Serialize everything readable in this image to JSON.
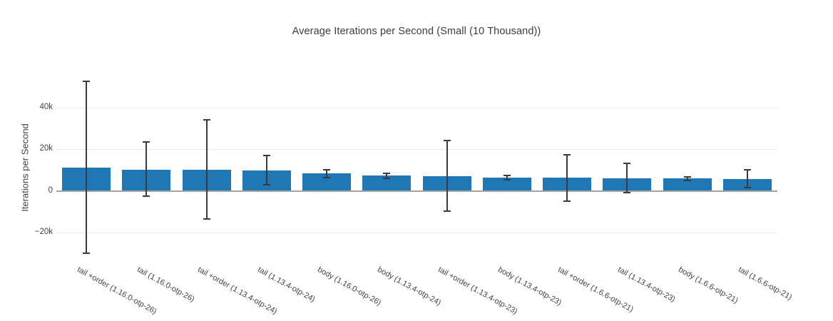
{
  "chart_data": {
    "type": "bar",
    "title": "Average Iterations per Second (Small (10 Thousand))",
    "xlabel": "",
    "ylabel": "Iterations per Second",
    "ylim": [
      -33000,
      61000
    ],
    "grid": "horizontal",
    "legend": "none",
    "bar_color": "#1f77b4",
    "error_bar_color": "#3b3b3b",
    "zero_line_color": "#a3a3a3",
    "gridline_color": "#ebebeb",
    "yticks": [
      {
        "label": "−20k",
        "value": -20000
      },
      {
        "label": "0",
        "value": 0
      },
      {
        "label": "20k",
        "value": 20000
      },
      {
        "label": "40k",
        "value": 40000
      }
    ],
    "categories": [
      "tail +order (1.16.0-otp-26)",
      "tail (1.16.0-otp-26)",
      "tail +order (1.13.4-otp-24)",
      "tail (1.13.4-otp-24)",
      "body (1.16.0-otp-26)",
      "body (1.13.4-otp-24)",
      "tail +order (1.13.4-otp-23)",
      "body (1.13.4-otp-23)",
      "tail +order (1.6.6-otp-21)",
      "tail (1.13.4-otp-23)",
      "body (1.6.6-otp-21)",
      "tail (1.6.6-otp-21)"
    ],
    "values": [
      11100,
      10200,
      10000,
      9700,
      8300,
      7300,
      7100,
      6400,
      6200,
      6000,
      5900,
      5700
    ],
    "error_high": [
      52600,
      23400,
      34100,
      17000,
      10100,
      8500,
      24200,
      7400,
      17200,
      13300,
      6800,
      10100
    ],
    "error_low": [
      -29900,
      -2600,
      -13400,
      2900,
      6300,
      5900,
      -9600,
      5300,
      -4800,
      -1000,
      5100,
      1600
    ]
  }
}
